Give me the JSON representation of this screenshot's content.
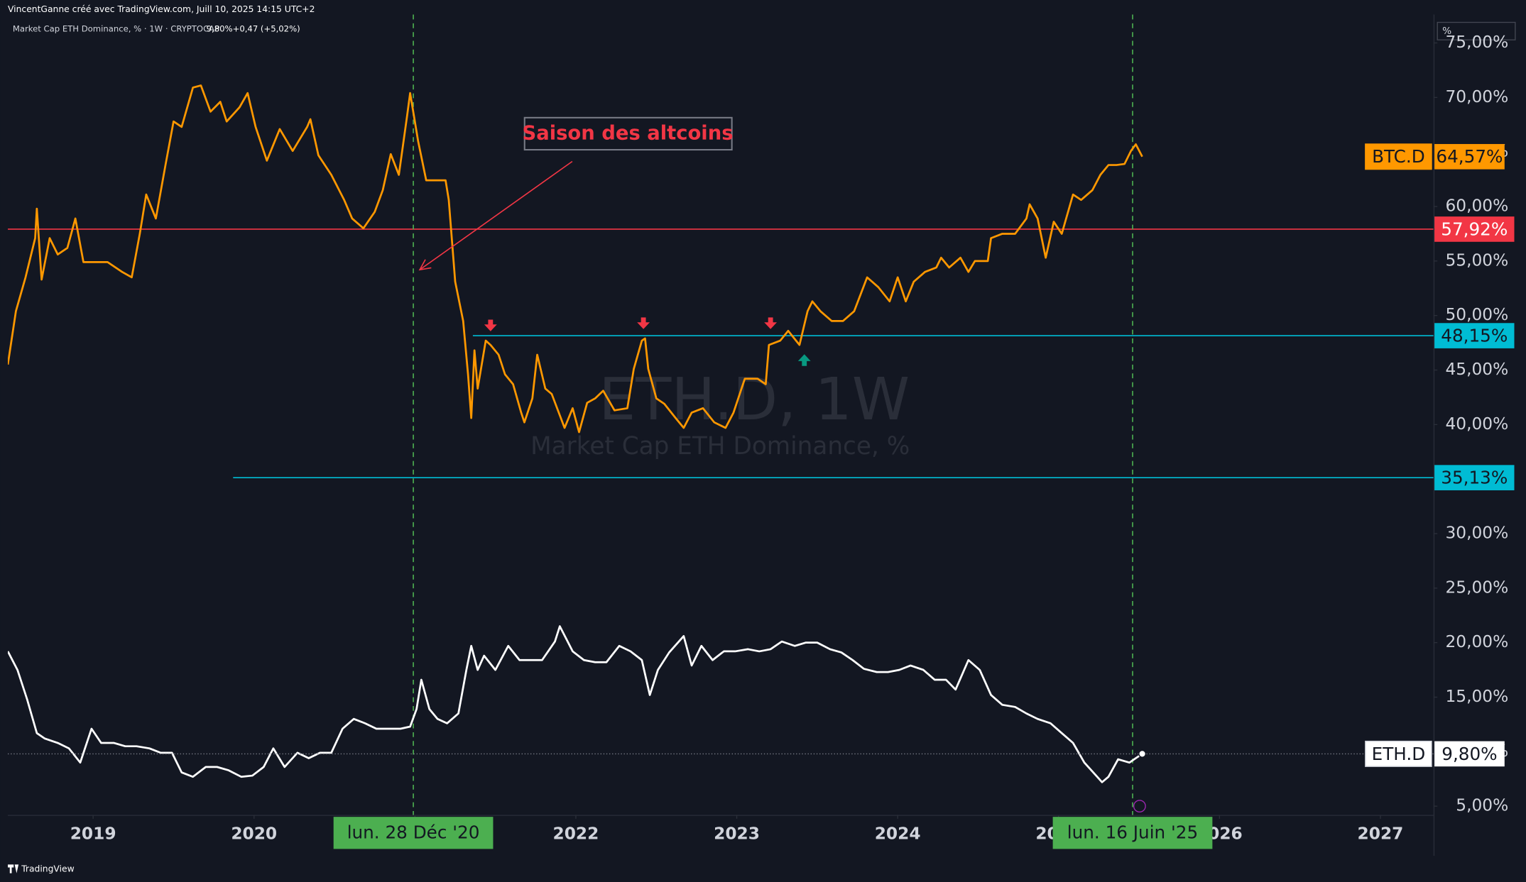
{
  "header": {
    "author_line": "VincentGanne créé avec TradingView.com, Juill 10, 2025 14:15 UTC+2",
    "symbol_line": "Market Cap ETH Dominance, % · 1W · CRYPTOCAP",
    "last_value": "9,80%",
    "change": "+0,47 (+5,02%)",
    "footer": "TradingView"
  },
  "chart_data": {
    "type": "line",
    "watermark": {
      "title": "ETH.D, 1W",
      "subtitle": "Market Cap ETH Dominance, %"
    },
    "axis_unit": "%",
    "xlim": [
      2018.47,
      2027.33
    ],
    "xticks": [
      2019,
      2020,
      2021,
      2022,
      2023,
      2024,
      2025,
      2026,
      2027
    ],
    "ylim": [
      4.2,
      77.6
    ],
    "yticks": [
      {
        "value": 5,
        "label": "5,00%"
      },
      {
        "value": 10,
        "label": "10,00%"
      },
      {
        "value": 15,
        "label": "15,00%"
      },
      {
        "value": 20,
        "label": "20,00%"
      },
      {
        "value": 25,
        "label": "25,00%"
      },
      {
        "value": 30,
        "label": "30,00%"
      },
      {
        "value": 35,
        "label": "35,00%"
      },
      {
        "value": 40,
        "label": "40,00%"
      },
      {
        "value": 45,
        "label": "45,00%"
      },
      {
        "value": 50,
        "label": "50,00%"
      },
      {
        "value": 55,
        "label": "55,00%"
      },
      {
        "value": 60,
        "label": "60,00%"
      },
      {
        "value": 65,
        "label": "65,00%"
      },
      {
        "value": 70,
        "label": "70,00%"
      },
      {
        "value": 75,
        "label": "75,00%"
      }
    ],
    "series": [
      {
        "name": "BTC.D",
        "color": "#ff9800",
        "value_label": "64,57%",
        "x": [
          2018.47,
          2018.52,
          2018.58,
          2018.64,
          2018.65,
          2018.68,
          2018.73,
          2018.78,
          2018.84,
          2018.89,
          2018.94,
          2019.01,
          2019.09,
          2019.18,
          2019.24,
          2019.29,
          2019.33,
          2019.39,
          2019.45,
          2019.5,
          2019.55,
          2019.62,
          2019.67,
          2019.73,
          2019.79,
          2019.83,
          2019.91,
          2019.96,
          2020.01,
          2020.08,
          2020.16,
          2020.24,
          2020.33,
          2020.35,
          2020.4,
          2020.48,
          2020.56,
          2020.61,
          2020.68,
          2020.75,
          2020.8,
          2020.85,
          2020.9,
          2020.95,
          2020.97,
          2021.02,
          2021.07,
          2021.14,
          2021.19,
          2021.21,
          2021.25,
          2021.3,
          2021.33,
          2021.35,
          2021.37,
          2021.39,
          2021.44,
          2021.47,
          2021.52,
          2021.56,
          2021.61,
          2021.66,
          2021.68,
          2021.73,
          2021.76,
          2021.81,
          2021.85,
          2021.93,
          2021.98,
          2022.02,
          2022.07,
          2022.12,
          2022.17,
          2022.24,
          2022.32,
          2022.36,
          2022.41,
          2022.43,
          2022.45,
          2022.5,
          2022.55,
          2022.62,
          2022.67,
          2022.72,
          2022.79,
          2022.86,
          2022.93,
          2022.98,
          2023.05,
          2023.13,
          2023.18,
          2023.2,
          2023.27,
          2023.32,
          2023.39,
          2023.44,
          2023.47,
          2023.52,
          2023.59,
          2023.66,
          2023.73,
          2023.81,
          2023.88,
          2023.95,
          2024.0,
          2024.05,
          2024.1,
          2024.17,
          2024.24,
          2024.27,
          2024.32,
          2024.39,
          2024.44,
          2024.48,
          2024.56,
          2024.58,
          2024.65,
          2024.73,
          2024.8,
          2024.82,
          2024.87,
          2024.92,
          2024.97,
          2025.02,
          2025.09,
          2025.14,
          2025.21,
          2025.26,
          2025.31,
          2025.36,
          2025.41,
          2025.45,
          2025.48,
          2025.52
        ],
        "values": [
          45.5,
          50.4,
          53.5,
          57.1,
          59.8,
          53.3,
          57.1,
          55.6,
          56.2,
          58.9,
          54.9,
          54.9,
          54.9,
          54.0,
          53.5,
          57.5,
          61.1,
          58.9,
          63.8,
          67.8,
          67.3,
          70.9,
          71.1,
          68.7,
          69.6,
          67.8,
          69.1,
          70.4,
          67.3,
          64.2,
          67.1,
          65.1,
          67.3,
          68.0,
          64.7,
          62.9,
          60.6,
          58.9,
          58.0,
          59.5,
          61.5,
          64.8,
          62.9,
          68.2,
          70.4,
          66.0,
          62.4,
          62.4,
          62.4,
          60.6,
          53.1,
          49.5,
          44.6,
          40.6,
          46.8,
          43.3,
          47.7,
          47.3,
          46.4,
          44.6,
          43.7,
          41.1,
          40.2,
          42.4,
          46.4,
          43.3,
          42.8,
          39.7,
          41.5,
          39.3,
          42.0,
          42.4,
          43.1,
          41.3,
          41.5,
          45.1,
          47.7,
          47.9,
          45.1,
          42.4,
          41.9,
          40.6,
          39.7,
          41.1,
          41.5,
          40.2,
          39.7,
          41.1,
          44.2,
          44.2,
          43.7,
          47.3,
          47.7,
          48.6,
          47.3,
          50.4,
          51.3,
          50.4,
          49.5,
          49.5,
          50.4,
          53.5,
          52.6,
          51.3,
          53.5,
          51.3,
          53.1,
          54.0,
          54.4,
          55.3,
          54.4,
          55.3,
          54.0,
          55.0,
          55.0,
          57.1,
          57.5,
          57.5,
          58.9,
          60.2,
          58.9,
          55.3,
          58.6,
          57.5,
          61.1,
          60.6,
          61.5,
          62.9,
          63.8,
          63.8,
          63.9,
          65.1,
          65.7,
          64.57
        ]
      },
      {
        "name": "ETH.D",
        "color": "#ffffff",
        "value_label": "9,80%",
        "x": [
          2018.47,
          2018.53,
          2018.59,
          2018.65,
          2018.7,
          2018.78,
          2018.85,
          2018.92,
          2018.99,
          2019.05,
          2019.13,
          2019.2,
          2019.27,
          2019.35,
          2019.42,
          2019.49,
          2019.55,
          2019.62,
          2019.7,
          2019.77,
          2019.84,
          2019.92,
          2019.99,
          2020.06,
          2020.12,
          2020.19,
          2020.27,
          2020.34,
          2020.41,
          2020.48,
          2020.55,
          2020.62,
          2020.69,
          2020.76,
          2020.84,
          2020.91,
          2020.97,
          2021.01,
          2021.04,
          2021.09,
          2021.14,
          2021.2,
          2021.27,
          2021.32,
          2021.35,
          2021.39,
          2021.43,
          2021.5,
          2021.58,
          2021.65,
          2021.72,
          2021.79,
          2021.87,
          2021.9,
          2021.98,
          2022.05,
          2022.12,
          2022.19,
          2022.27,
          2022.34,
          2022.41,
          2022.46,
          2022.51,
          2022.58,
          2022.67,
          2022.72,
          2022.78,
          2022.85,
          2022.92,
          2022.99,
          2023.07,
          2023.14,
          2023.21,
          2023.28,
          2023.36,
          2023.43,
          2023.5,
          2023.58,
          2023.65,
          2023.72,
          2023.79,
          2023.87,
          2023.94,
          2024.01,
          2024.08,
          2024.16,
          2024.23,
          2024.3,
          2024.36,
          2024.44,
          2024.51,
          2024.58,
          2024.65,
          2024.73,
          2024.8,
          2024.87,
          2024.95,
          2025.02,
          2025.09,
          2025.16,
          2025.24,
          2025.27,
          2025.31,
          2025.37,
          2025.44,
          2025.48,
          2025.52
        ],
        "values": [
          19.2,
          17.5,
          14.8,
          11.7,
          11.2,
          10.8,
          10.3,
          9.0,
          12.1,
          10.8,
          10.8,
          10.5,
          10.5,
          10.3,
          9.9,
          9.9,
          8.1,
          7.7,
          8.6,
          8.6,
          8.3,
          7.7,
          7.8,
          8.6,
          10.3,
          8.6,
          9.9,
          9.4,
          9.9,
          9.9,
          12.1,
          13.0,
          12.6,
          12.1,
          12.1,
          12.1,
          12.3,
          13.9,
          16.6,
          13.9,
          13.0,
          12.6,
          13.5,
          17.5,
          19.7,
          17.5,
          18.8,
          17.5,
          19.7,
          18.4,
          18.4,
          18.4,
          20.1,
          21.5,
          19.2,
          18.4,
          18.2,
          18.2,
          19.7,
          19.2,
          18.4,
          15.2,
          17.5,
          19.1,
          20.6,
          17.9,
          19.7,
          18.4,
          19.2,
          19.2,
          19.4,
          19.2,
          19.4,
          20.1,
          19.7,
          20.0,
          20.0,
          19.4,
          19.1,
          18.4,
          17.6,
          17.3,
          17.3,
          17.5,
          17.9,
          17.5,
          16.6,
          16.6,
          15.7,
          18.4,
          17.5,
          15.2,
          14.3,
          14.1,
          13.5,
          13.0,
          12.6,
          11.7,
          10.8,
          9.0,
          7.7,
          7.2,
          7.7,
          9.3,
          9.0,
          9.4,
          9.8
        ]
      }
    ],
    "hlines": [
      {
        "value": 57.92,
        "label": "57,92%",
        "color": "#f23645"
      },
      {
        "value": 48.15,
        "label": "48,15%",
        "color": "#00bcd4",
        "from": 2021.36
      },
      {
        "value": 35.13,
        "label": "35,13%",
        "color": "#00bcd4",
        "from": 2019.87
      }
    ],
    "vlines": [
      {
        "x": 2020.99,
        "label": "lun. 28 Déc '20"
      },
      {
        "x": 2025.46,
        "label": "lun. 16 Juin '25"
      }
    ],
    "markers": [
      {
        "x": 2021.47,
        "y": 49.0,
        "color": "#f23645",
        "shape": "arrow-down"
      },
      {
        "x": 2022.42,
        "y": 49.2,
        "color": "#f23645",
        "shape": "arrow-down"
      },
      {
        "x": 2023.21,
        "y": 49.2,
        "color": "#f23645",
        "shape": "arrow-down"
      },
      {
        "x": 2023.42,
        "y": 46.0,
        "color": "#089981",
        "shape": "arrow-up"
      }
    ],
    "annotation": {
      "text": "Saison des altcoins",
      "x": 2021.03,
      "y": 54.2,
      "color": "#f23645"
    }
  }
}
